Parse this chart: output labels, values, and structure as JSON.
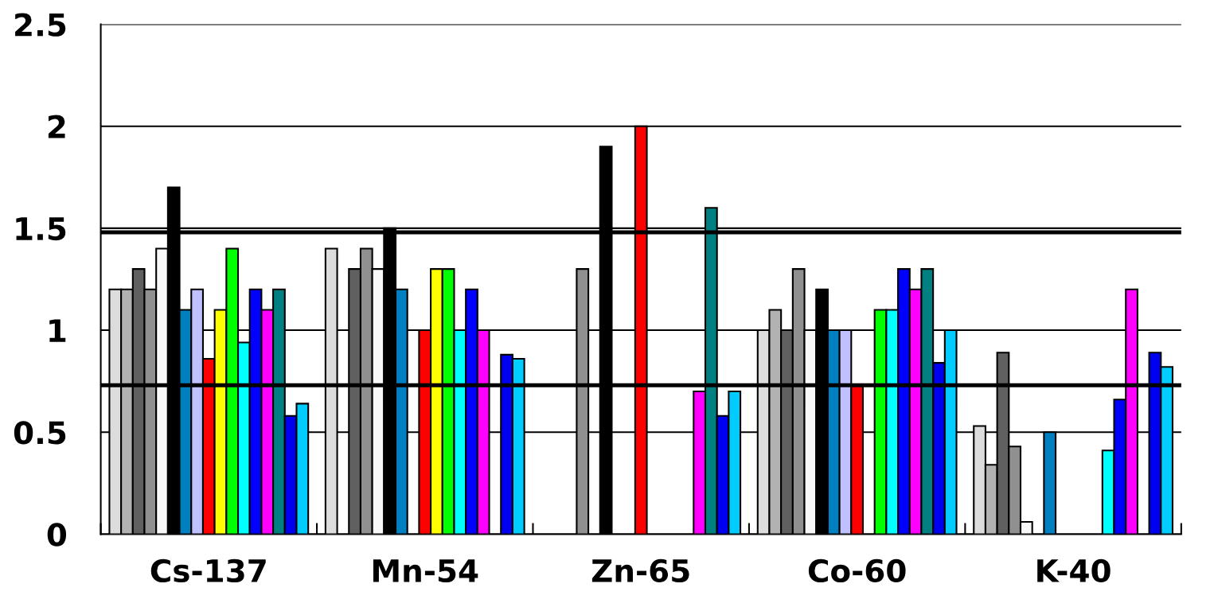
{
  "chart_data": {
    "type": "bar",
    "categories": [
      "Cs-137",
      "Mn-54",
      "Zn-65",
      "Co-60",
      "K-40"
    ],
    "series": [
      {
        "color": "#dcdcdc",
        "values": [
          1.2,
          1.4,
          null,
          1.0,
          0.53
        ]
      },
      {
        "color": "#b2b2b2",
        "values": [
          1.2,
          null,
          null,
          1.1,
          0.34
        ]
      },
      {
        "color": "#606060",
        "values": [
          1.3,
          1.3,
          null,
          1.0,
          0.89
        ]
      },
      {
        "color": "#909090",
        "values": [
          1.2,
          1.4,
          1.3,
          1.3,
          0.43
        ]
      },
      {
        "color": "#f8f8f8",
        "values": [
          1.4,
          1.3,
          null,
          1.0,
          0.06
        ]
      },
      {
        "color": "#000000",
        "values": [
          1.7,
          1.5,
          1.9,
          1.2,
          null
        ]
      },
      {
        "color": "#0080c0",
        "values": [
          1.1,
          1.2,
          null,
          1.0,
          0.5
        ]
      },
      {
        "color": "#c0c0ff",
        "values": [
          1.2,
          null,
          null,
          1.0,
          null
        ]
      },
      {
        "color": "#ff0000",
        "values": [
          0.86,
          1.0,
          2.0,
          0.73,
          null
        ]
      },
      {
        "color": "#ffff00",
        "values": [
          1.1,
          1.3,
          null,
          null,
          null
        ]
      },
      {
        "color": "#00ff00",
        "values": [
          1.4,
          1.3,
          null,
          1.1,
          null
        ]
      },
      {
        "color": "#00ffff",
        "values": [
          0.94,
          1.0,
          null,
          1.1,
          0.41
        ]
      },
      {
        "color": "#0000ff",
        "values": [
          1.2,
          1.2,
          null,
          1.3,
          0.66
        ]
      },
      {
        "color": "#ff00ff",
        "values": [
          1.1,
          1.0,
          0.7,
          1.2,
          1.2
        ]
      },
      {
        "color": "#008080",
        "values": [
          1.2,
          null,
          1.6,
          1.3,
          null
        ]
      },
      {
        "color": "#0000f0",
        "values": [
          0.58,
          0.88,
          0.58,
          0.84,
          0.89
        ]
      },
      {
        "color": "#00ccff",
        "values": [
          0.64,
          0.86,
          0.7,
          1.0,
          0.82
        ]
      }
    ],
    "ylim": [
      0,
      2.5
    ],
    "yticks": [
      0,
      0.5,
      1,
      1.5,
      2,
      2.5
    ],
    "grid": "y",
    "ref_lines": [
      {
        "axis": "y",
        "value": 1.48,
        "color": "#000000"
      },
      {
        "axis": "y",
        "value": 0.73,
        "color": "#000000"
      }
    ]
  }
}
